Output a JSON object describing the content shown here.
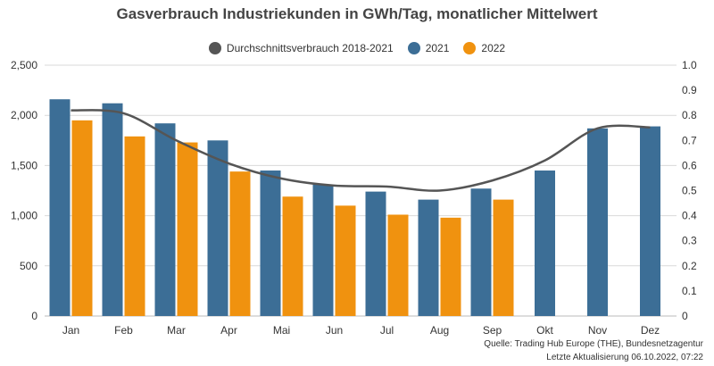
{
  "chart_data": {
    "type": "bar",
    "title": "Gasverbrauch Industriekunden in GWh/Tag, monatlicher Mittelwert",
    "categories": [
      "Jan",
      "Feb",
      "Mar",
      "Apr",
      "Mai",
      "Jun",
      "Jul",
      "Aug",
      "Sep",
      "Okt",
      "Nov",
      "Dez"
    ],
    "series": [
      {
        "name": "Durchschnittsverbrauch 2018-2021",
        "kind": "line",
        "color": "#555555",
        "values": [
          2050,
          2020,
          1750,
          1520,
          1370,
          1300,
          1290,
          1250,
          1350,
          1550,
          1870,
          1880
        ]
      },
      {
        "name": "2021",
        "kind": "bar",
        "color": "#3c6e96",
        "values": [
          2160,
          2120,
          1920,
          1750,
          1450,
          1310,
          1240,
          1160,
          1270,
          1450,
          1870,
          1890
        ]
      },
      {
        "name": "2022",
        "kind": "bar",
        "color": "#f0920f",
        "values": [
          1950,
          1790,
          1730,
          1440,
          1190,
          1100,
          1010,
          980,
          1160,
          null,
          null,
          null
        ]
      }
    ],
    "ylim": [
      0,
      2500
    ],
    "yticks": [
      "0",
      "500",
      "1,000",
      "1,500",
      "2,000",
      "2,500"
    ],
    "y2lim": [
      0,
      1.0
    ],
    "y2ticks": [
      "0",
      "0.1",
      "0.2",
      "0.3",
      "0.4",
      "0.5",
      "0.6",
      "0.7",
      "0.8",
      "0.9",
      "1.0"
    ],
    "grid": true,
    "legend_position": "top"
  },
  "source": {
    "line1": "Quelle: Trading Hub Europe (THE), Bundesnetzagentur",
    "line2": "Letzte Aktualisierung 06.10.2022, 07:22"
  }
}
